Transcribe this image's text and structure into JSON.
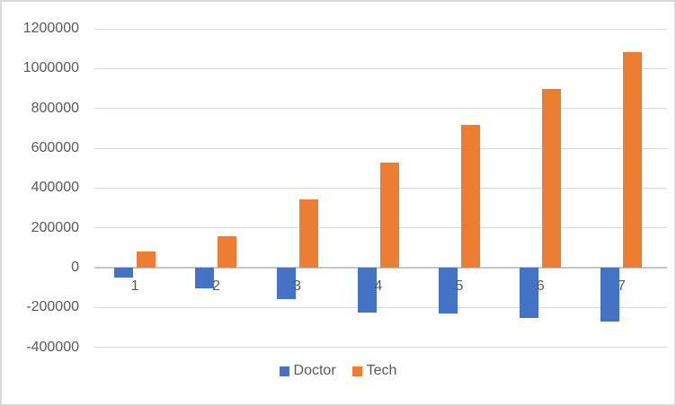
{
  "chart_data": {
    "type": "bar",
    "title": "",
    "xlabel": "",
    "ylabel": "",
    "categories": [
      "1",
      "2",
      "3",
      "4",
      "5",
      "6",
      "7"
    ],
    "series": [
      {
        "name": "Doctor",
        "color": "#4472C4",
        "values": [
          -50000,
          -105000,
          -160000,
          -225000,
          -232000,
          -254000,
          -271000
        ]
      },
      {
        "name": "Tech",
        "color": "#ED7D31",
        "values": [
          80000,
          160000,
          345000,
          530000,
          719000,
          897000,
          1084000
        ]
      }
    ],
    "ylim": [
      -400000,
      1200000
    ],
    "ytick_step": 200000,
    "ytick_values": [
      1200000,
      1000000,
      800000,
      600000,
      400000,
      200000,
      0,
      -200000,
      -400000
    ],
    "ytick_labels": [
      "1200000",
      "1000000",
      "800000",
      "600000",
      "400000",
      "200000",
      "0",
      "-200000",
      "-400000"
    ],
    "grid": true,
    "legend_position": "bottom"
  },
  "colors": {
    "background": "#FFFFFF",
    "border": "#D9D9D9",
    "gridline": "#D9D9D9",
    "zero_axis": "#C6C6C6",
    "text": "#595959",
    "series_doctor": "#4472C4",
    "series_tech": "#ED7D31"
  }
}
